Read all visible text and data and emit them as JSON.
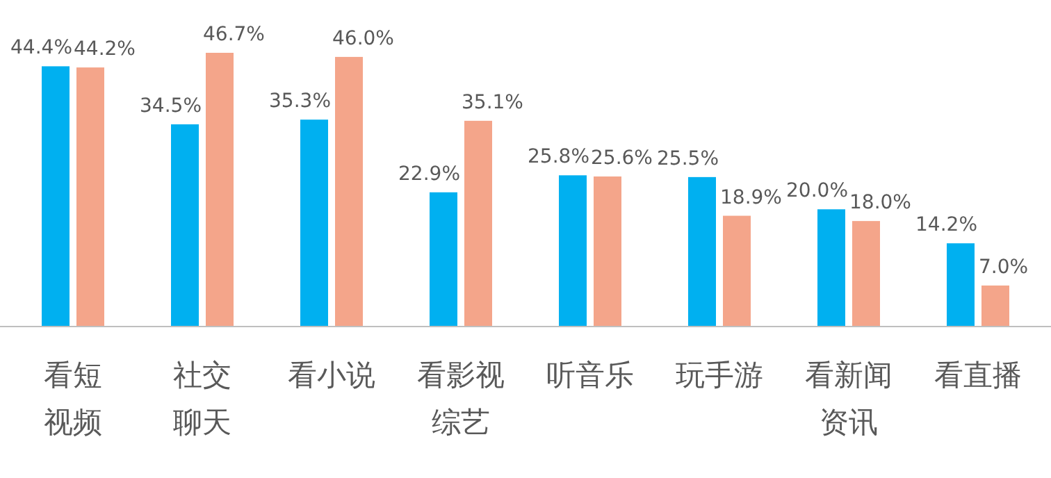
{
  "chart_data": {
    "type": "bar",
    "categories": [
      "看短视频",
      "社交聊天",
      "看小说",
      "看影视综艺",
      "听音乐",
      "玩手游",
      "看新闻资讯",
      "看直播"
    ],
    "series": [
      {
        "color": "#00b0f0",
        "values": [
          44.4,
          34.5,
          35.3,
          22.9,
          25.8,
          25.5,
          20.0,
          14.2
        ],
        "value_labels": [
          "44.4%",
          "34.5%",
          "35.3%",
          "22.9%",
          "25.8%",
          "25.5%",
          "20.0%",
          "14.2%"
        ]
      },
      {
        "color": "#f4a58a",
        "values": [
          44.2,
          46.7,
          46.0,
          35.1,
          25.6,
          18.9,
          18.0,
          7.0
        ],
        "value_labels": [
          "44.2%",
          "46.7%",
          "46.0%",
          "35.1%",
          "25.6%",
          "18.9%",
          "18.0%",
          "7.0%"
        ]
      }
    ]
  }
}
